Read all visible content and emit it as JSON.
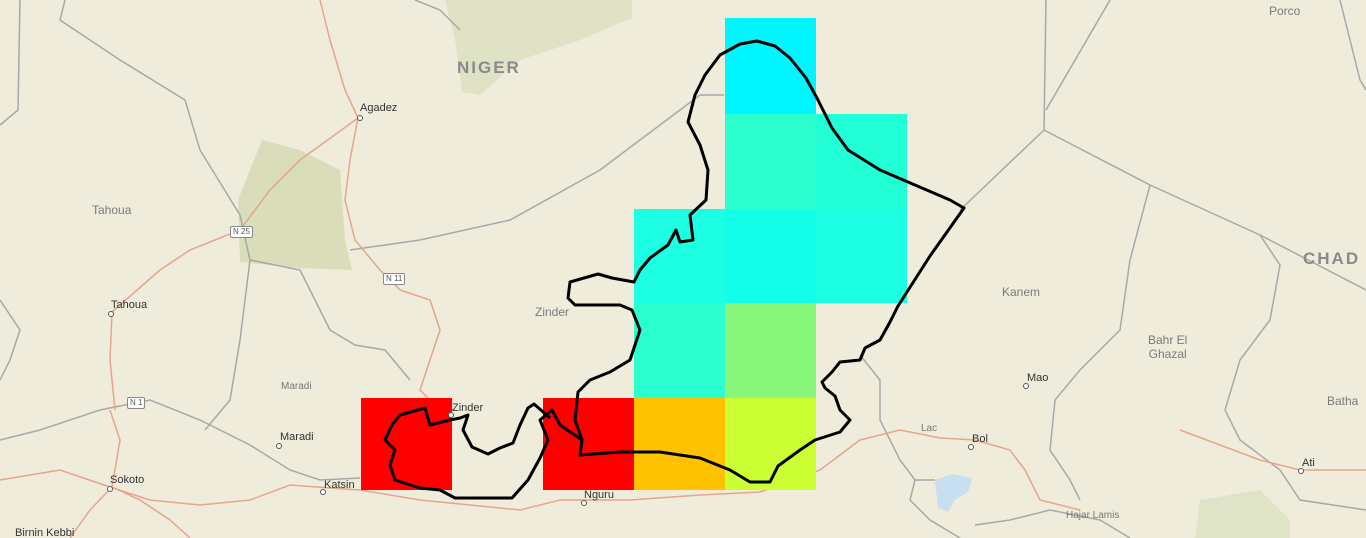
{
  "map": {
    "labels": {
      "niger": "NIGER",
      "chad": "CHAD",
      "porco": "Porco",
      "agadez": "Agadez",
      "tahoua_region": "Tahoua",
      "tahoua_city": "Tahoua",
      "zinder_region": "Zinder",
      "zinder_city": "Zinder",
      "maradi_region": "Maradi",
      "maradi_city": "Maradi",
      "katsina": "Katsin",
      "sokoto": "Sokoto",
      "birnin_kebbi": "Birnin Kebbi",
      "nguru": "Nguru",
      "kanem": "Kanem",
      "bahr_el_ghazal": "Bahr El\nGhazal",
      "mao": "Mao",
      "lac": "Lac",
      "bol": "Bol",
      "batha": "Batha",
      "ati": "Ati",
      "hajar_lamis": "Hajar Lamis"
    },
    "roads": {
      "n25": "N 25",
      "n11": "N 11",
      "n1": "N 1"
    },
    "heat_cells": [
      {
        "name": "cell-nw-red",
        "color": "#ff0000"
      },
      {
        "name": "cell-red-2",
        "color": "#ff0000"
      },
      {
        "name": "cell-orange",
        "color": "#ffc200"
      },
      {
        "name": "cell-yellow-green",
        "color": "#ccff33"
      },
      {
        "name": "cell-green",
        "color": "#88f67b"
      },
      {
        "name": "cell-cyan-top",
        "color": "#00f6ff"
      },
      {
        "name": "cell-aqua",
        "color": "#22ffd6"
      },
      {
        "name": "cell-aqua-2",
        "color": "#1dffe2"
      }
    ],
    "colors": {
      "land": "#efecdc",
      "outline": "#000000",
      "boundary": "#a8a8a8",
      "road": "#e6a58c",
      "green_area": "#d8ddb8"
    }
  }
}
